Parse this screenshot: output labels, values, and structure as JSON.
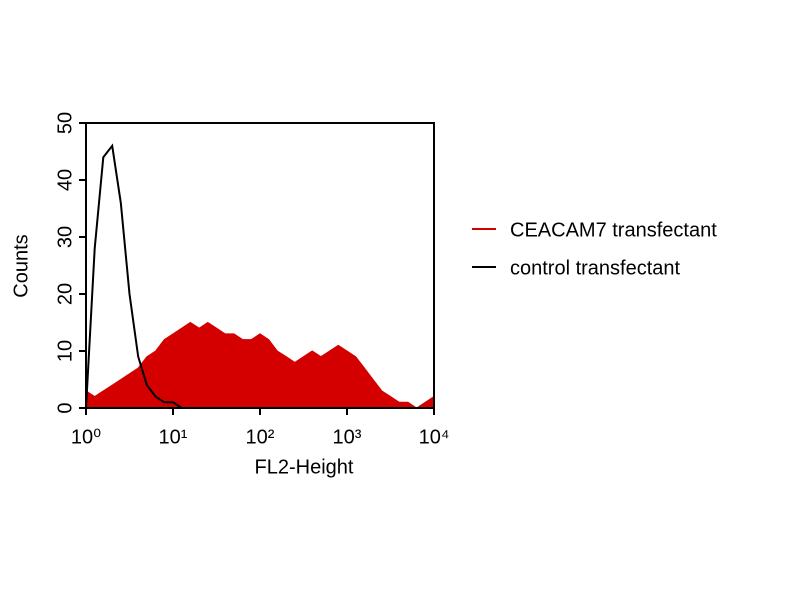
{
  "chart_data": {
    "type": "histogram-overlay",
    "x_label": "FL2-Height",
    "y_label": "Counts",
    "x_scale": "log",
    "xlim": [
      1,
      10000
    ],
    "xticks": [
      {
        "value": 1,
        "label": "10⁰"
      },
      {
        "value": 10,
        "label": "10¹"
      },
      {
        "value": 100,
        "label": "10²"
      },
      {
        "value": 1000,
        "label": "10³"
      },
      {
        "value": 10000,
        "label": "10⁴"
      }
    ],
    "ylim": [
      0,
      50
    ],
    "yticks": [
      0,
      10,
      20,
      30,
      40,
      50
    ],
    "legend": "right",
    "x": [
      1,
      1.26,
      1.58,
      2,
      2.51,
      3.16,
      3.98,
      5.01,
      6.31,
      7.94,
      10,
      12.6,
      15.8,
      20,
      25.1,
      31.6,
      39.8,
      50.1,
      63.1,
      79.4,
      100,
      126,
      158,
      200,
      251,
      316,
      398,
      501,
      631,
      794,
      1000,
      1259,
      1585,
      1995,
      2512,
      3162,
      3981,
      5012,
      6310,
      7943,
      10000
    ],
    "series": [
      {
        "name": "CEACAM7 transfectant",
        "color": "#d40000",
        "fill": true,
        "values": [
          3,
          2,
          3,
          4,
          5,
          6,
          7,
          9,
          10,
          12,
          13,
          14,
          15,
          14,
          15,
          14,
          13,
          13,
          12,
          12,
          13,
          12,
          10,
          9,
          8,
          9,
          10,
          9,
          10,
          11,
          10,
          9,
          7,
          5,
          3,
          2,
          1,
          1,
          0,
          1,
          2
        ]
      },
      {
        "name": "control transfectant",
        "color": "#000000",
        "fill": false,
        "values": [
          0,
          28,
          44,
          46,
          36,
          20,
          9,
          4,
          2,
          1,
          1,
          0,
          0,
          0,
          0,
          0,
          0,
          0,
          0,
          0,
          0,
          0,
          0,
          0,
          0,
          0,
          0,
          0,
          0,
          0,
          0,
          0,
          0,
          0,
          0,
          0,
          0,
          0,
          0,
          0,
          0
        ]
      }
    ]
  }
}
